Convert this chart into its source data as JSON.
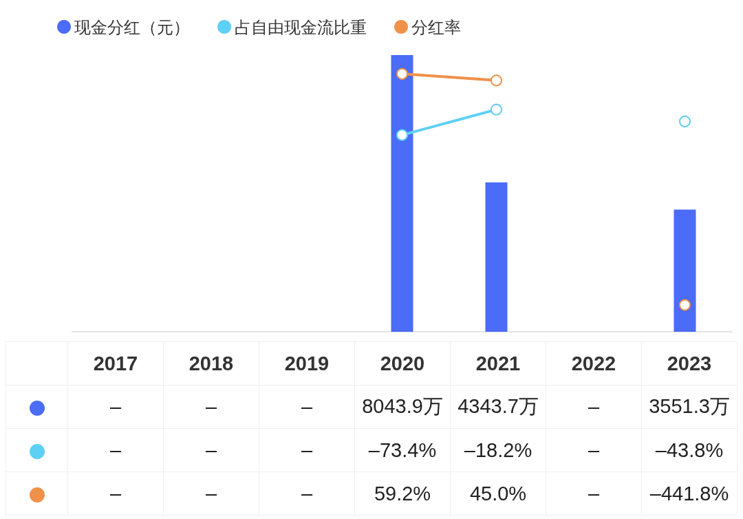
{
  "chart_data": {
    "type": "bar",
    "categories": [
      "2017",
      "2018",
      "2019",
      "2020",
      "2021",
      "2022",
      "2023"
    ],
    "series": [
      {
        "name": "现金分红（元）",
        "color": "#4a6cf7",
        "values": [
          null,
          null,
          null,
          8043.9,
          4343.7,
          null,
          3551.3
        ],
        "value_labels": [
          "–",
          "–",
          "–",
          "8043.9万",
          "4343.7万",
          "–",
          "3551.3万"
        ]
      },
      {
        "name": "占自由现金流比重",
        "type": "line",
        "axis": "y2",
        "color": "#5fd0f5",
        "values": [
          null,
          null,
          null,
          -73.4,
          -18.2,
          null,
          -43.8
        ],
        "value_labels": [
          "–",
          "–",
          "–",
          "–73.4%",
          "–18.2%",
          "–",
          "–43.8%"
        ]
      },
      {
        "name": "分红率",
        "type": "line",
        "axis": "y2",
        "color": "#f0914a",
        "values": [
          null,
          null,
          null,
          59.2,
          45.0,
          null,
          -441.8
        ],
        "value_labels": [
          "–",
          "–",
          "–",
          "59.2%",
          "45.0%",
          "–",
          "–441.8%"
        ]
      }
    ],
    "legend": "top left",
    "grid": false,
    "tick_labels": false,
    "marker": "circle"
  }
}
